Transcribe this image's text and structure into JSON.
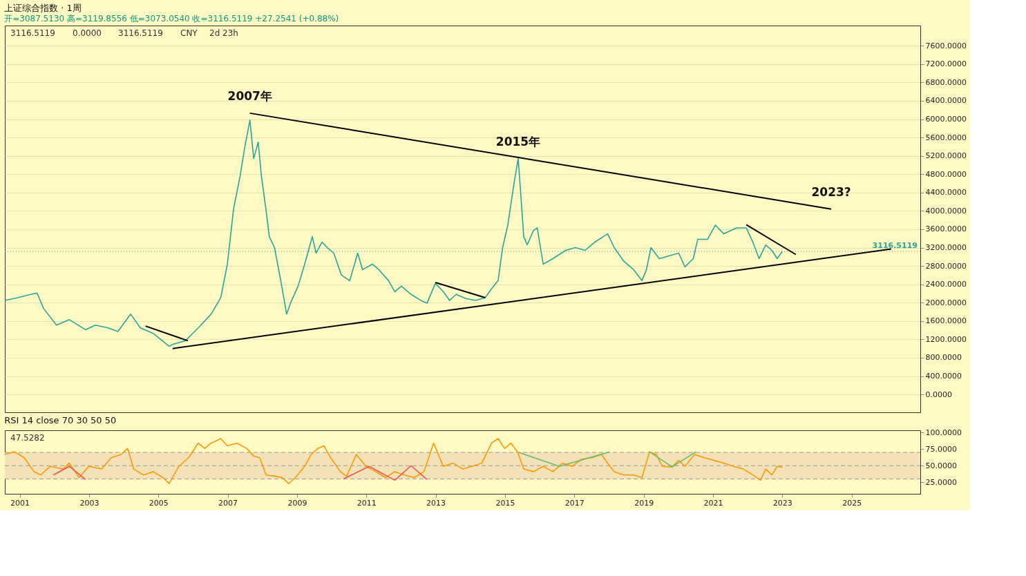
{
  "chart_data": [
    {
      "type": "line",
      "title": "上证综合指数 · 1周",
      "subtitle": "开=3087.5130 高=3119.8556 低=3073.0540 收=3116.5119 +27.2541 (+0.88%)",
      "annotations": [
        "3116.5119",
        "0.0000",
        "3116.5119",
        "CNY",
        "2d 23h",
        {
          "text": "2007年",
          "x": 2007.64,
          "y": 6130
        },
        {
          "text": "2015年",
          "x": 2015.38,
          "y": 5140
        },
        {
          "text": "2023?",
          "x": 2024.41,
          "y": 4040
        }
      ],
      "xlim": [
        2000.57,
        2026.98
      ],
      "xticks": [
        2001,
        2003,
        2005,
        2007,
        2009,
        2011,
        2013,
        2015,
        2017,
        2019,
        2021,
        2023,
        2025
      ],
      "ylim": [
        -390,
        8040
      ],
      "yticks": [
        {
          "value": 0,
          "label": "0.0000"
        },
        {
          "value": 400,
          "label": "400.0000"
        },
        {
          "value": 800,
          "label": "800.0000"
        },
        {
          "value": 1200,
          "label": "1200.0000"
        },
        {
          "value": 1600,
          "label": "1600.0000"
        },
        {
          "value": 2000,
          "label": "2000.0000"
        },
        {
          "value": 2400,
          "label": "2400.0000"
        },
        {
          "value": 2800,
          "label": "2800.0000"
        },
        {
          "value": 3200,
          "label": "3200.0000"
        },
        {
          "value": 3600,
          "label": "3600.0000"
        },
        {
          "value": 4000,
          "label": "4000.0000"
        },
        {
          "value": 4400,
          "label": "4400.0000"
        },
        {
          "value": 4800,
          "label": "4800.0000"
        },
        {
          "value": 5200,
          "label": "5200.0000"
        },
        {
          "value": 5600,
          "label": "5600.0000"
        },
        {
          "value": 6000,
          "label": "6000.0000"
        },
        {
          "value": 6400,
          "label": "6400.0000"
        },
        {
          "value": 6800,
          "label": "6800.0000"
        },
        {
          "value": 7200,
          "label": "7200.0000"
        },
        {
          "value": 7600,
          "label": "7600.0000"
        }
      ],
      "grid": "y",
      "tick_labels": "y",
      "marker": "none",
      "line_style": "solid",
      "ref_lines": [
        {
          "axis": "y",
          "value": 3116.5119,
          "label": "3116.5119",
          "color": "#26a69a",
          "line_style": "dotted"
        }
      ],
      "series": [
        {
          "color": "#26a69a",
          "x": [
            2000.57,
            2000.94,
            2001.32,
            2001.5,
            2001.69,
            2002.06,
            2002.43,
            2002.9,
            2003.18,
            2003.55,
            2003.83,
            2004.2,
            2004.48,
            2004.85,
            2005.31,
            2005.41,
            2005.78,
            2006.15,
            2006.52,
            2006.8,
            2006.99,
            2007.17,
            2007.36,
            2007.49,
            2007.64,
            2007.75,
            2007.88,
            2007.97,
            2008.1,
            2008.2,
            2008.35,
            2008.53,
            2008.7,
            2008.81,
            2009.03,
            2009.22,
            2009.44,
            2009.55,
            2009.72,
            2009.87,
            2010.06,
            2010.28,
            2010.52,
            2010.75,
            2010.89,
            2011.17,
            2011.36,
            2011.64,
            2011.82,
            2012.01,
            2012.29,
            2012.57,
            2012.75,
            2012.99,
            2013.22,
            2013.4,
            2013.59,
            2013.87,
            2014.15,
            2014.43,
            2014.61,
            2014.8,
            2014.93,
            2015.08,
            2015.27,
            2015.38,
            2015.45,
            2015.54,
            2015.64,
            2015.82,
            2015.93,
            2016.1,
            2016.38,
            2016.75,
            2017.03,
            2017.31,
            2017.59,
            2017.96,
            2018.15,
            2018.43,
            2018.71,
            2018.95,
            2019.08,
            2019.21,
            2019.45,
            2019.73,
            2020.01,
            2020.19,
            2020.43,
            2020.56,
            2020.84,
            2021.07,
            2021.31,
            2021.68,
            2021.96,
            2022.15,
            2022.33,
            2022.52,
            2022.7,
            2022.85,
            2023.0
          ],
          "values": [
            2050,
            2110,
            2180,
            2210,
            1870,
            1510,
            1630,
            1410,
            1510,
            1450,
            1370,
            1750,
            1450,
            1330,
            1050,
            1090,
            1170,
            1450,
            1750,
            2110,
            2840,
            4050,
            4770,
            5380,
            5980,
            5140,
            5500,
            4770,
            4050,
            3440,
            3200,
            2480,
            1750,
            1990,
            2360,
            2840,
            3440,
            3080,
            3320,
            3200,
            3080,
            2600,
            2480,
            3080,
            2720,
            2840,
            2720,
            2480,
            2240,
            2360,
            2180,
            2050,
            1990,
            2420,
            2240,
            2050,
            2180,
            2090,
            2050,
            2110,
            2300,
            2480,
            3200,
            3690,
            4650,
            5140,
            4410,
            3440,
            3260,
            3570,
            3630,
            2840,
            2960,
            3140,
            3200,
            3140,
            3320,
            3500,
            3200,
            2900,
            2720,
            2480,
            2720,
            3200,
            2960,
            3020,
            3080,
            2780,
            2960,
            3380,
            3380,
            3690,
            3500,
            3630,
            3630,
            3320,
            2960,
            3260,
            3140,
            2960,
            3116.51
          ]
        },
        {
          "color": "#000000",
          "x": [
            2007.64,
            2024.41
          ],
          "values": [
            6130,
            4040
          ]
        },
        {
          "color": "#000000",
          "x": [
            2005.41,
            2026.14
          ],
          "values": [
            1000,
            3170
          ]
        },
        {
          "color": "#000000",
          "x": [
            2004.63,
            2005.85
          ],
          "values": [
            1490,
            1170
          ]
        },
        {
          "color": "#000000",
          "x": [
            2012.99,
            2014.43
          ],
          "values": [
            2440,
            2110
          ]
        },
        {
          "color": "#000000",
          "x": [
            2021.96,
            2023.39
          ],
          "values": [
            3700,
            3050
          ]
        }
      ]
    },
    {
      "type": "line",
      "title": "RSI 14 close 70 30 50 50",
      "annotations": [
        "47.5282"
      ],
      "xlim": [
        2000.57,
        2026.98
      ],
      "xticks": [
        2001,
        2003,
        2005,
        2007,
        2009,
        2011,
        2013,
        2015,
        2017,
        2019,
        2021,
        2023,
        2025
      ],
      "ylim": [
        7.5,
        103.5
      ],
      "yticks": [
        {
          "value": 25,
          "label": "25.0000"
        },
        {
          "value": 50,
          "label": "50.0000"
        },
        {
          "value": 75,
          "label": "75.0000"
        },
        {
          "value": 100,
          "label": "100.0000"
        }
      ],
      "marker": "none",
      "line_style": "solid",
      "bands": [
        {
          "axis": "y",
          "from": 30,
          "to": 70,
          "color": "#f3e2b8"
        }
      ],
      "ref_lines": [
        {
          "axis": "y",
          "value": 70,
          "color": "#999999",
          "line_style": "dashed"
        },
        {
          "axis": "y",
          "value": 50,
          "color": "#999999",
          "line_style": "dashed"
        },
        {
          "axis": "y",
          "value": 30,
          "color": "#999999",
          "line_style": "dashed"
        }
      ],
      "series": [
        {
          "color": "#ff9800",
          "type": "line",
          "x": [
            2000.57,
            2000.85,
            2001.13,
            2001.41,
            2001.6,
            2001.88,
            2002.25,
            2002.43,
            2002.71,
            2002.99,
            2003.36,
            2003.64,
            2003.92,
            2004.11,
            2004.29,
            2004.57,
            2004.85,
            2005.13,
            2005.31,
            2005.59,
            2005.87,
            2006.15,
            2006.34,
            2006.52,
            2006.8,
            2006.99,
            2007.27,
            2007.55,
            2007.74,
            2007.92,
            2008.11,
            2008.39,
            2008.57,
            2008.76,
            2008.95,
            2009.22,
            2009.41,
            2009.6,
            2009.78,
            2009.97,
            2010.25,
            2010.43,
            2010.71,
            2010.99,
            2011.27,
            2011.55,
            2011.82,
            2012.1,
            2012.38,
            2012.66,
            2012.94,
            2013.22,
            2013.5,
            2013.78,
            2014.06,
            2014.33,
            2014.61,
            2014.8,
            2014.99,
            2015.17,
            2015.36,
            2015.54,
            2015.82,
            2016.1,
            2016.38,
            2016.66,
            2016.94,
            2017.22,
            2017.5,
            2017.78,
            2017.96,
            2018.15,
            2018.43,
            2018.71,
            2018.95,
            2019.17,
            2019.36,
            2019.54,
            2019.82,
            2020.01,
            2020.19,
            2020.47,
            2020.75,
            2021.03,
            2021.31,
            2021.59,
            2021.87,
            2022.15,
            2022.37,
            2022.52,
            2022.7,
            2022.85,
            2023.0
          ],
          "values": [
            67,
            71,
            62,
            41,
            36,
            49,
            45,
            54,
            32,
            49,
            45,
            62,
            67,
            76,
            45,
            36,
            41,
            32,
            23,
            49,
            62,
            84,
            76,
            84,
            91,
            80,
            84,
            76,
            65,
            62,
            36,
            34,
            32,
            23,
            32,
            49,
            67,
            76,
            80,
            62,
            41,
            34,
            67,
            49,
            41,
            32,
            41,
            36,
            32,
            41,
            84,
            49,
            54,
            45,
            49,
            54,
            84,
            91,
            76,
            84,
            71,
            45,
            41,
            49,
            41,
            54,
            49,
            60,
            62,
            67,
            54,
            41,
            36,
            36,
            32,
            71,
            67,
            49,
            48,
            58,
            49,
            67,
            62,
            58,
            54,
            49,
            45,
            36,
            28,
            45,
            36,
            49,
            47.53
          ]
        },
        {
          "color": "#ef5350",
          "x": [
            2001.97,
            2002.43,
            2002.9
          ],
          "values": [
            36,
            49,
            29
          ]
        },
        {
          "color": "#ef5350",
          "x": [
            2010.34,
            2011.08,
            2011.82
          ],
          "values": [
            30,
            49,
            28
          ]
        },
        {
          "color": "#ef5350",
          "x": [
            2011.82,
            2012.29,
            2012.75
          ],
          "values": [
            28,
            50,
            29
          ]
        },
        {
          "color": "#66bb6a",
          "x": [
            2015.4,
            2016.57,
            2018.02
          ],
          "values": [
            70,
            49,
            71
          ]
        },
        {
          "color": "#66bb6a",
          "x": [
            2019.17,
            2019.82,
            2020.51
          ],
          "values": [
            71,
            48,
            71
          ]
        }
      ]
    }
  ]
}
